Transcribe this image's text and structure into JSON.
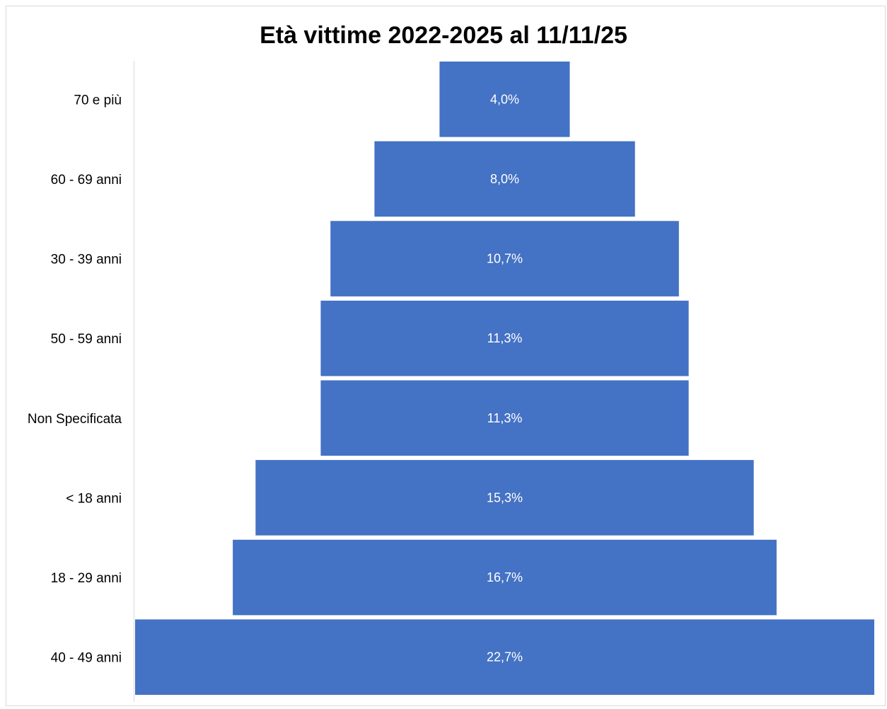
{
  "chart_data": {
    "type": "bar",
    "orientation": "horizontal",
    "style": "funnel",
    "title": "Età vittime 2022-2025 al 11/11/25",
    "categories": [
      "70 e più",
      "60 - 69 anni",
      "30 - 39 anni",
      "50 - 59 anni",
      "Non Specificata",
      "< 18 anni",
      "18 - 29 anni",
      "40 - 49 anni"
    ],
    "values": [
      4.0,
      8.0,
      10.7,
      11.3,
      11.3,
      15.3,
      16.7,
      22.7
    ],
    "data_labels": [
      "4,0%",
      "8,0%",
      "10,7%",
      "11,3%",
      "11,3%",
      "15,3%",
      "16,7%",
      "22,7%"
    ],
    "unit": "%",
    "bar_color": "#4472C4",
    "label_color": "#FFFFFF",
    "grid": false,
    "legend": "none"
  }
}
